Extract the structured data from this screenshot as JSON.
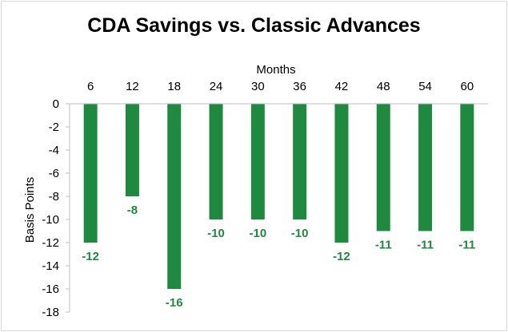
{
  "chart_data": {
    "type": "bar",
    "title": "CDA Savings vs. Classic Advances",
    "xlabel": "Months",
    "ylabel": "Basis Points",
    "categories": [
      "6",
      "12",
      "18",
      "24",
      "30",
      "36",
      "42",
      "48",
      "54",
      "60"
    ],
    "series": [
      {
        "values": [
          -12,
          -8,
          -16,
          -10,
          -10,
          -10,
          -12,
          -11,
          -11,
          -11
        ]
      }
    ],
    "ylim": [
      -18,
      0
    ],
    "yticks": [
      "0",
      "-2",
      "-4",
      "-6",
      "-8",
      "-10",
      "-12",
      "-14",
      "-16",
      "-18"
    ],
    "data_labels": [
      "-12",
      "-8",
      "-16",
      "-10",
      "-10",
      "-10",
      "-12",
      "-11",
      "-11",
      "-11"
    ],
    "x_axis_position": "top",
    "grid": false,
    "legend": "none",
    "colors": {
      "bar": "#1e8a3f",
      "axis": "#bfbfbf",
      "label": "#1e8a3f"
    }
  }
}
